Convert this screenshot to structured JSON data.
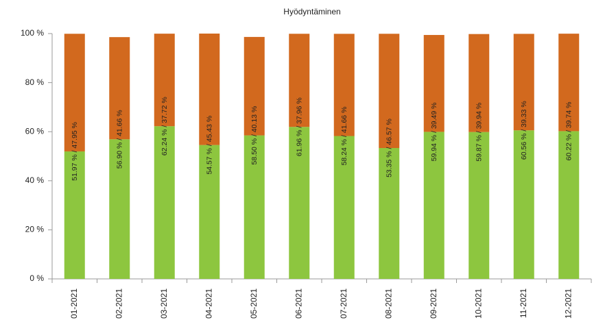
{
  "chart_data": {
    "type": "stacked_bar",
    "title": "Hyödyntäminen",
    "categories": [
      "01-2021",
      "02-2021",
      "03-2021",
      "04-2021",
      "05-2021",
      "06-2021",
      "07-2021",
      "08-2021",
      "09-2021",
      "10-2021",
      "11-2021",
      "12-2021"
    ],
    "series": [
      {
        "color": "#8dc63f",
        "values": [
          51.97,
          56.9,
          62.24,
          54.57,
          58.5,
          61.96,
          58.24,
          53.35,
          59.94,
          59.87,
          60.56,
          60.22
        ],
        "value_labels": [
          "51.97 %",
          "56.90 %",
          "62.24 %",
          "54.57 %",
          "58.50 %",
          "61.96 %",
          "58.24 %",
          "53.35 %",
          "59.94 %",
          "59.87 %",
          "60.56 %",
          "60.22 %"
        ]
      },
      {
        "color": "#d2691e",
        "values": [
          47.95,
          41.66,
          37.72,
          45.43,
          40.13,
          37.96,
          41.66,
          46.57,
          39.49,
          39.94,
          39.33,
          39.74
        ],
        "value_labels": [
          "47.95 %",
          "41.66 %",
          "37.72 %",
          "45.43 %",
          "40.13 %",
          "37.96 %",
          "41.66 %",
          "46.57 %",
          "39.49 %",
          "39.94 %",
          "39.33 %",
          "39.74 %"
        ]
      }
    ],
    "value_label_separator": " / ",
    "ylim": [
      0,
      100
    ],
    "yticks": [
      {
        "value": 0,
        "label": "0 %"
      },
      {
        "value": 20,
        "label": "20 %"
      },
      {
        "value": 40,
        "label": "40 %"
      },
      {
        "value": 60,
        "label": "60 %"
      },
      {
        "value": 80,
        "label": "80 %"
      },
      {
        "value": 100,
        "label": "100 %"
      }
    ],
    "grid": false
  }
}
